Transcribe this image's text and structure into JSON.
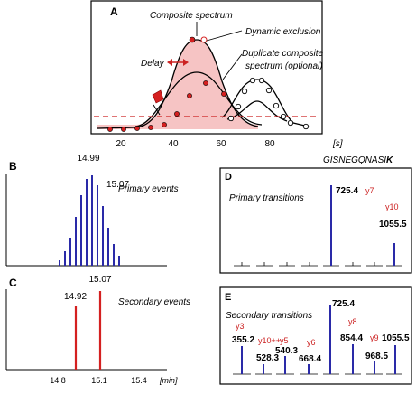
{
  "panel_a": {
    "letter": "A",
    "composite_label": "Composite spectrum",
    "dynamic_label": "Dynamic exclusion",
    "delay_label": "Delay",
    "duplicate_line1": "Duplicate composite",
    "duplicate_line2": "spectrum (optional)",
    "x_unit": "[s]",
    "ticks": [
      "20",
      "40",
      "60",
      "80"
    ],
    "colors": {
      "fill": "#f6c4c4",
      "threshold": "#cc2222",
      "point": "#d42020"
    }
  },
  "panel_b": {
    "letter": "B",
    "caption": "Primary events",
    "peak_labels": [
      "14.99",
      "15.07"
    ],
    "bar_color": "#2a2aa8"
  },
  "panel_c": {
    "letter": "C",
    "caption": "Secondary events",
    "peak_labels": [
      "15.07",
      "14.92"
    ],
    "bar_color": "#d42020",
    "x_ticks": [
      "14.8",
      "15.1",
      "15.4"
    ],
    "x_unit": "[min]"
  },
  "panel_d": {
    "letter": "D",
    "peptide_prefix": "GISNEGQNASI",
    "peptide_last": "K",
    "caption": "Primary transitions",
    "mz_values": [
      "725.4",
      "1055.5"
    ],
    "ion_labels": [
      "y7",
      "y10"
    ]
  },
  "panel_e": {
    "letter": "E",
    "caption": "Secondary transitions",
    "mz_values": [
      "355.2",
      "528.3",
      "540.3",
      "668.4",
      "725.4",
      "854.4",
      "968.5",
      "1055.5"
    ],
    "ion_labels": [
      "y3",
      "y10++",
      "y5",
      "y6",
      "y8",
      "y9"
    ]
  }
}
